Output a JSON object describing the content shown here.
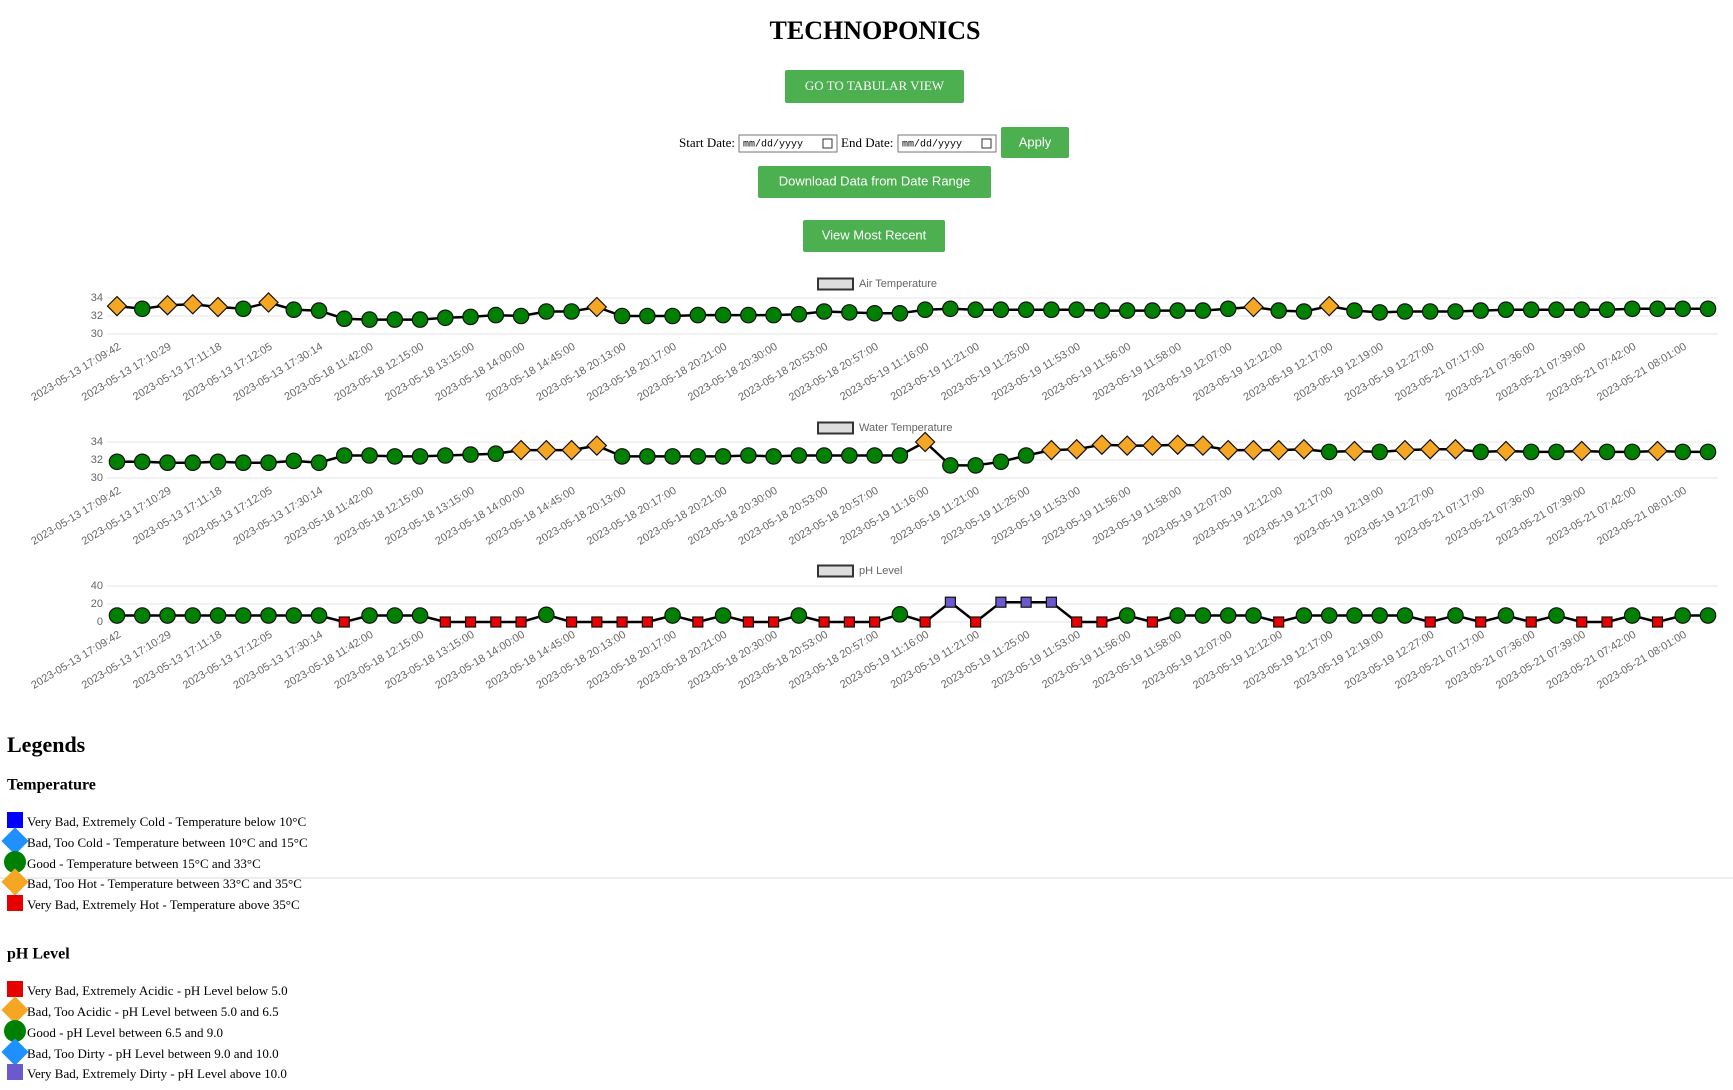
{
  "header": {
    "title": "TECHNOPONICS",
    "tabular_button": "GO TO TABULAR VIEW"
  },
  "filter": {
    "start_label": "Start Date:",
    "end_label": "End Date:",
    "placeholder": "mm/dd/yyyy",
    "apply": "Apply",
    "download": "Download Data from Date Range",
    "recent": "View Most Recent"
  },
  "chart_data": [
    {
      "type": "line",
      "legend_group": 0,
      "marker_thresholds": [
        10,
        15,
        33,
        35
      ],
      "grid": true,
      "categories": [
        "2023-05-13 17:09:42",
        null,
        "2023-05-13 17:10:29",
        null,
        "2023-05-13 17:11:18",
        null,
        "2023-05-13 17:12:05",
        null,
        "2023-05-13 17:30:14",
        null,
        "2023-05-18 11:42:00",
        null,
        "2023-05-18 12:15:00",
        null,
        "2023-05-18 13:15:00",
        null,
        "2023-05-18 14:00:00",
        null,
        "2023-05-18 14:45:00",
        null,
        "2023-05-18 20:13:00",
        null,
        "2023-05-18 20:17:00",
        null,
        "2023-05-18 20:21:00",
        null,
        "2023-05-18 20:30:00",
        null,
        "2023-05-18 20:53:00",
        null,
        "2023-05-18 20:57:00",
        null,
        "2023-05-19 11:16:00",
        null,
        "2023-05-19 11:21:00",
        null,
        "2023-05-19 11:25:00",
        null,
        "2023-05-19 11:53:00",
        null,
        "2023-05-19 11:56:00",
        null,
        "2023-05-19 11:58:00",
        null,
        "2023-05-19 12:07:00",
        null,
        "2023-05-19 12:12:00",
        null,
        "2023-05-19 12:17:00",
        null,
        "2023-05-19 12:19:00",
        null,
        "2023-05-19 12:27:00",
        null,
        "2023-05-21 07:17:00",
        null,
        "2023-05-21 07:36:00",
        null,
        "2023-05-21 07:39:00",
        null,
        "2023-05-21 07:42:00",
        null,
        "2023-05-21 08:01:00",
        null
      ],
      "series": [
        {
          "name": "Air Temperature",
          "color": "#000000",
          "values": [
            33.1,
            32.8,
            33.2,
            33.3,
            33,
            32.8,
            33.5,
            32.7,
            32.6,
            31.7,
            31.6,
            31.6,
            31.6,
            31.8,
            31.9,
            32.1,
            32,
            32.5,
            32.5,
            33,
            32,
            32,
            32,
            32.1,
            32.1,
            32.1,
            32.1,
            32.2,
            32.5,
            32.4,
            32.3,
            32.3,
            32.7,
            32.8,
            32.7,
            32.7,
            32.7,
            32.7,
            32.7,
            32.6,
            32.6,
            32.6,
            32.6,
            32.6,
            32.8,
            33,
            32.6,
            32.5,
            33.1,
            32.6,
            32.4,
            32.5,
            32.5,
            32.5,
            32.6,
            32.7,
            32.7,
            32.7,
            32.7,
            32.7,
            32.8,
            32.8,
            32.8,
            32.8
          ]
        }
      ],
      "ylim": [
        30,
        34
      ],
      "yticks": [
        30,
        32,
        34
      ]
    },
    {
      "type": "line",
      "legend_group": 0,
      "marker_thresholds": [
        10,
        15,
        33,
        35
      ],
      "grid": true,
      "categories": [
        "2023-05-13 17:09:42",
        null,
        "2023-05-13 17:10:29",
        null,
        "2023-05-13 17:11:18",
        null,
        "2023-05-13 17:12:05",
        null,
        "2023-05-13 17:30:14",
        null,
        "2023-05-18 11:42:00",
        null,
        "2023-05-18 12:15:00",
        null,
        "2023-05-18 13:15:00",
        null,
        "2023-05-18 14:00:00",
        null,
        "2023-05-18 14:45:00",
        null,
        "2023-05-18 20:13:00",
        null,
        "2023-05-18 20:17:00",
        null,
        "2023-05-18 20:21:00",
        null,
        "2023-05-18 20:30:00",
        null,
        "2023-05-18 20:53:00",
        null,
        "2023-05-18 20:57:00",
        null,
        "2023-05-19 11:16:00",
        null,
        "2023-05-19 11:21:00",
        null,
        "2023-05-19 11:25:00",
        null,
        "2023-05-19 11:53:00",
        null,
        "2023-05-19 11:56:00",
        null,
        "2023-05-19 11:58:00",
        null,
        "2023-05-19 12:07:00",
        null,
        "2023-05-19 12:12:00",
        null,
        "2023-05-19 12:17:00",
        null,
        "2023-05-19 12:19:00",
        null,
        "2023-05-19 12:27:00",
        null,
        "2023-05-21 07:17:00",
        null,
        "2023-05-21 07:36:00",
        null,
        "2023-05-21 07:39:00",
        null,
        "2023-05-21 07:42:00",
        null,
        "2023-05-21 08:01:00",
        null
      ],
      "series": [
        {
          "name": "Water Temperature",
          "color": "#000000",
          "values": [
            31.8,
            31.8,
            31.7,
            31.7,
            31.8,
            31.7,
            31.7,
            31.9,
            31.7,
            32.5,
            32.5,
            32.4,
            32.4,
            32.5,
            32.6,
            32.7,
            33.1,
            33.1,
            33.1,
            33.6,
            32.4,
            32.4,
            32.4,
            32.4,
            32.4,
            32.5,
            32.4,
            32.5,
            32.5,
            32.5,
            32.5,
            32.5,
            34,
            31.4,
            31.4,
            31.8,
            32.5,
            33.1,
            33.2,
            33.7,
            33.6,
            33.6,
            33.7,
            33.6,
            33.1,
            33.1,
            33.1,
            33.2,
            32.9,
            33,
            32.9,
            33.1,
            33.2,
            33.2,
            32.9,
            33,
            32.9,
            32.9,
            33,
            32.9,
            32.9,
            33,
            32.9,
            32.9
          ]
        }
      ],
      "ylim": [
        30,
        34
      ],
      "yticks": [
        30,
        32,
        34
      ]
    },
    {
      "type": "line",
      "legend_group": 1,
      "marker_thresholds": [
        5,
        6.5,
        9,
        10
      ],
      "grid": true,
      "categories": [
        "2023-05-13 17:09:42",
        null,
        "2023-05-13 17:10:29",
        null,
        "2023-05-13 17:11:18",
        null,
        "2023-05-13 17:12:05",
        null,
        "2023-05-13 17:30:14",
        null,
        "2023-05-18 11:42:00",
        null,
        "2023-05-18 12:15:00",
        null,
        "2023-05-18 13:15:00",
        null,
        "2023-05-18 14:00:00",
        null,
        "2023-05-18 14:45:00",
        null,
        "2023-05-18 20:13:00",
        null,
        "2023-05-18 20:17:00",
        null,
        "2023-05-18 20:21:00",
        null,
        "2023-05-18 20:30:00",
        null,
        "2023-05-18 20:53:00",
        null,
        "2023-05-18 20:57:00",
        null,
        "2023-05-19 11:16:00",
        null,
        "2023-05-19 11:21:00",
        null,
        "2023-05-19 11:25:00",
        null,
        "2023-05-19 11:53:00",
        null,
        "2023-05-19 11:56:00",
        null,
        "2023-05-19 11:58:00",
        null,
        "2023-05-19 12:07:00",
        null,
        "2023-05-19 12:12:00",
        null,
        "2023-05-19 12:17:00",
        null,
        "2023-05-19 12:19:00",
        null,
        "2023-05-19 12:27:00",
        null,
        "2023-05-21 07:17:00",
        null,
        "2023-05-21 07:36:00",
        null,
        "2023-05-21 07:39:00",
        null,
        "2023-05-21 07:42:00",
        null,
        "2023-05-21 08:01:00",
        null
      ],
      "series": [
        {
          "name": "pH Level",
          "color": "#000000",
          "values": [
            7.2,
            7.2,
            7.2,
            7.2,
            7.2,
            7.2,
            7.2,
            7.2,
            7.2,
            0,
            7.2,
            7.2,
            7.2,
            0,
            0,
            0,
            0,
            8,
            0,
            0,
            0,
            0,
            7.2,
            0,
            7.2,
            0,
            0,
            7.2,
            0,
            0,
            0,
            8.5,
            0,
            22,
            0,
            22,
            22,
            22,
            0,
            0,
            7.2,
            0,
            7.2,
            7.2,
            7.2,
            7.2,
            0,
            7.2,
            7.2,
            7.2,
            7.2,
            7.2,
            0,
            7.2,
            0,
            7.2,
            0,
            7.2,
            0,
            0,
            7.2,
            0,
            7.2,
            7.2
          ]
        }
      ],
      "ylim": [
        0,
        40
      ],
      "yticks": [
        0,
        20,
        40
      ]
    }
  ],
  "legends": {
    "title": "Legends",
    "groups": [
      {
        "title": "Temperature",
        "items": [
          {
            "label": "Very Bad, Extremely Cold - Temperature below 10°C",
            "color": "#0000ff",
            "shape": "square"
          },
          {
            "label": "Bad, Too Cold - Temperature between 10°C and 15°C",
            "color": "#1e90ff",
            "shape": "diamond"
          },
          {
            "label": "Good - Temperature between 15°C and 33°C",
            "color": "#008000",
            "shape": "circle"
          },
          {
            "label": "Bad, Too Hot - Temperature between 33°C and 35°C",
            "color": "#f5a623",
            "shape": "diamond"
          },
          {
            "label": "Very Bad, Extremely Hot - Temperature above 35°C",
            "color": "#e60000",
            "shape": "square"
          }
        ]
      },
      {
        "title": "pH Level",
        "items": [
          {
            "label": "Very Bad, Extremely Acidic - pH Level below 5.0",
            "color": "#e60000",
            "shape": "square"
          },
          {
            "label": "Bad, Too Acidic - pH Level between 5.0 and 6.5",
            "color": "#f5a623",
            "shape": "diamond"
          },
          {
            "label": "Good - pH Level between 6.5 and 9.0",
            "color": "#008000",
            "shape": "circle"
          },
          {
            "label": "Bad, Too Dirty - pH Level between 9.0 and 10.0",
            "color": "#1e90ff",
            "shape": "diamond"
          },
          {
            "label": "Very Bad, Extremely Dirty - pH Level above 10.0",
            "color": "#6a5acd",
            "shape": "square"
          }
        ]
      }
    ]
  }
}
